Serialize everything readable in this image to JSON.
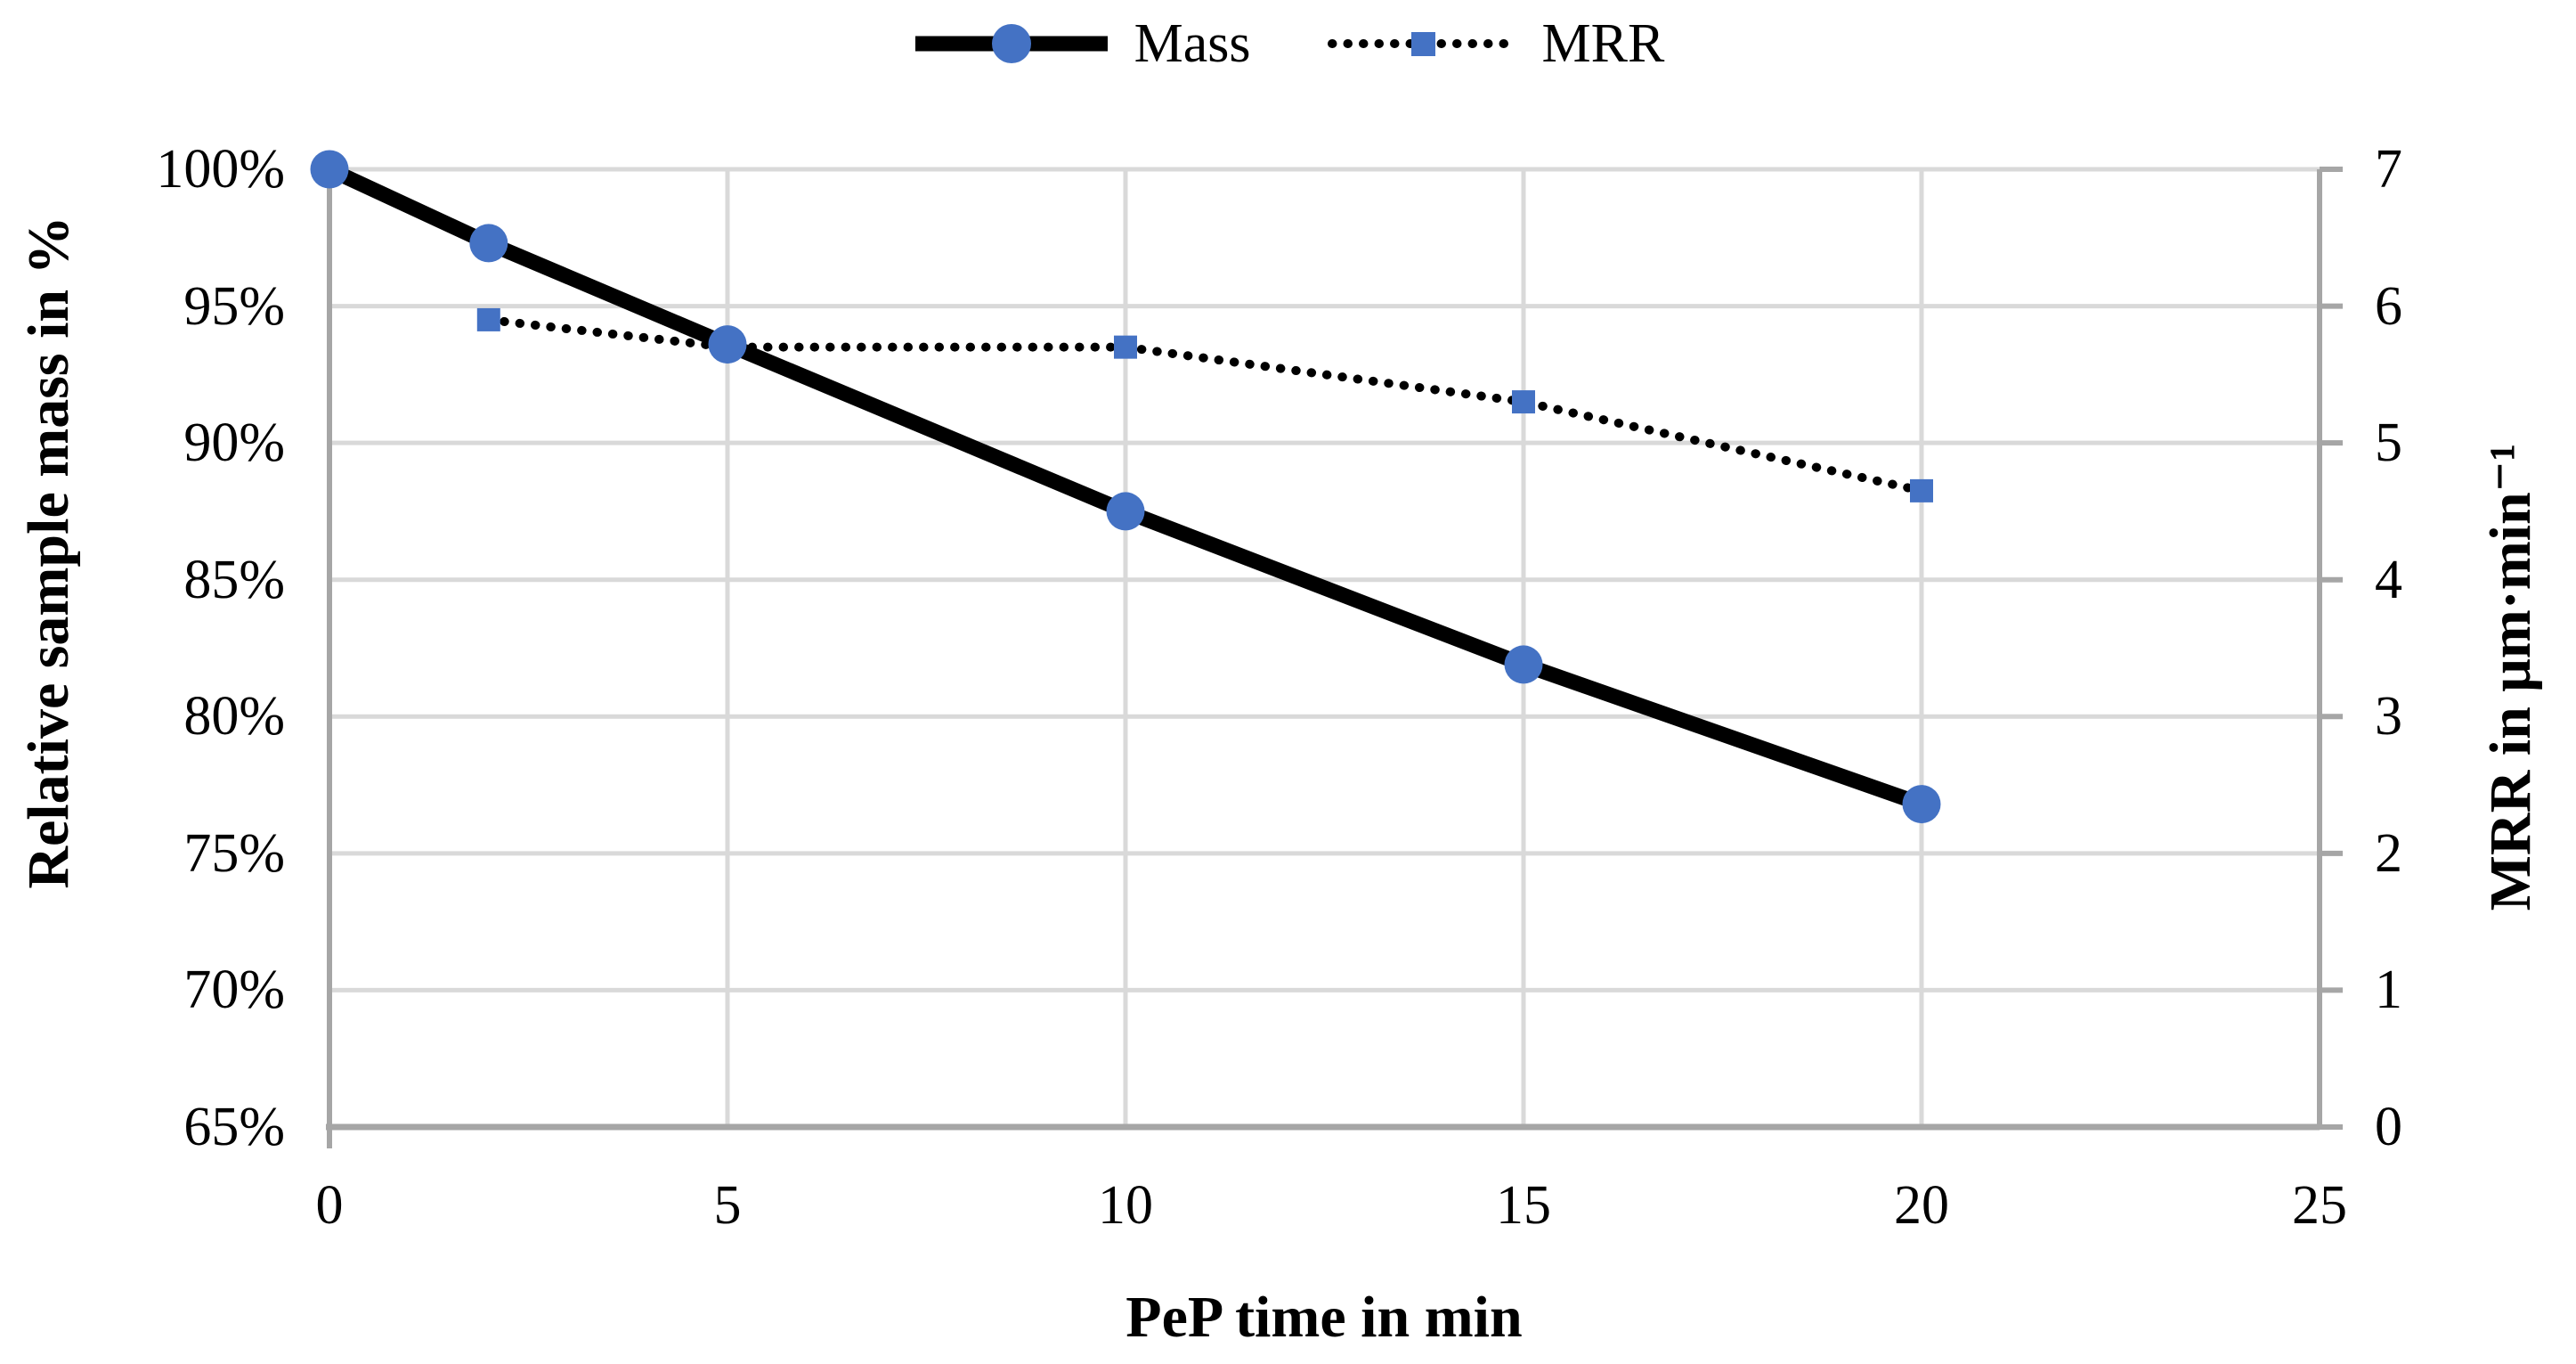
{
  "chart_data": {
    "type": "line",
    "title": "",
    "x": {
      "label": "PeP time in min",
      "ticks": [
        "0",
        "5",
        "10",
        "15",
        "20",
        "25"
      ],
      "tick_values": [
        0,
        5,
        10,
        15,
        20,
        25
      ],
      "range": [
        0,
        25
      ]
    },
    "y_left": {
      "label": "Relative sample mass in %",
      "ticks": [
        "100%",
        "95%",
        "90%",
        "85%",
        "80%",
        "75%",
        "70%",
        "65%"
      ],
      "tick_values": [
        100,
        95,
        90,
        85,
        80,
        75,
        70,
        65
      ],
      "range": [
        65,
        100
      ]
    },
    "y_right": {
      "label": "MRR in μm·min⁻¹",
      "ticks": [
        "7",
        "6",
        "5",
        "4",
        "3",
        "2",
        "1",
        "0"
      ],
      "tick_values": [
        7,
        6,
        5,
        4,
        3,
        2,
        1,
        0
      ],
      "range": [
        0,
        7
      ]
    },
    "series": [
      {
        "name": "Mass",
        "axis": "left",
        "line": "solid",
        "marker": "circle",
        "unit": "%",
        "x": [
          0,
          2,
          5,
          10,
          15,
          20
        ],
        "values": [
          100,
          97.3,
          93.6,
          87.5,
          81.9,
          76.8
        ]
      },
      {
        "name": "MRR",
        "axis": "right",
        "line": "dotted",
        "marker": "square",
        "unit": "μm·min⁻¹",
        "x": [
          2,
          5,
          10,
          15,
          20
        ],
        "values": [
          5.9,
          5.7,
          5.7,
          5.3,
          4.65
        ]
      }
    ],
    "legend": {
      "position": "top",
      "items": [
        "Mass",
        "MRR"
      ]
    },
    "colors": {
      "marker_blue": "#4472C4",
      "series_line": "#000000",
      "gridline": "#D9D9D9",
      "axis_line": "#A6A6A6"
    },
    "grid": true
  }
}
